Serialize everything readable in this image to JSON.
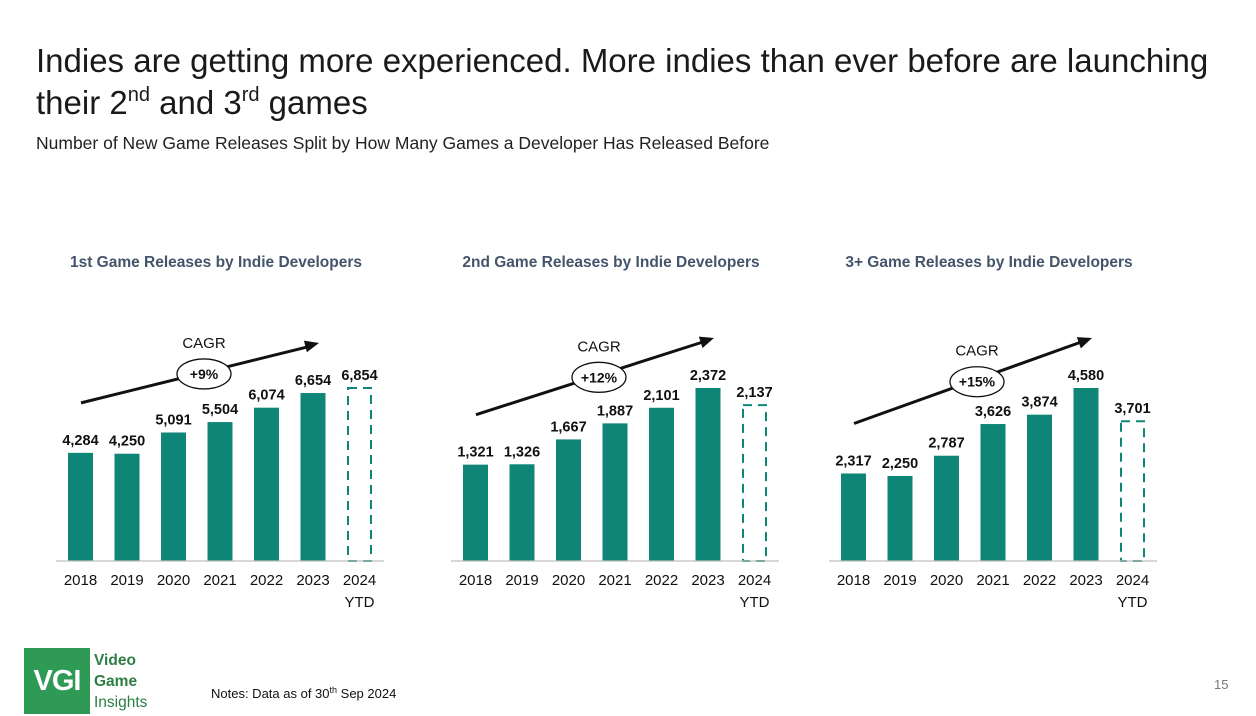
{
  "slide": {
    "title_part1": "Indies are getting more experienced. More indies than ever before are launching their 2",
    "title_sup1": "nd",
    "title_part2": " and 3",
    "title_sup2": "rd",
    "title_part3": " games",
    "subtitle": "Number of New Game Releases Split by How Many Games a Developer Has Released Before",
    "notes_prefix": "Notes: Data as of 30",
    "notes_sup": "th",
    "notes_suffix": " Sep 2024",
    "page_number": "15",
    "logo": {
      "mark": "VGI",
      "line1": "Video",
      "line2": "Game",
      "line3": "Insights"
    }
  },
  "colors": {
    "bar": "#0e8577",
    "title": "#44546a",
    "ytd_outline": "#0e8577",
    "logo": "#2e9a55"
  },
  "chart_data": [
    {
      "type": "bar",
      "title": "1st Game Releases by Indie Developers",
      "categories": [
        "2018",
        "2019",
        "2020",
        "2021",
        "2022",
        "2023",
        "2024"
      ],
      "category_sublabels": [
        "",
        "",
        "",
        "",
        "",
        "",
        "YTD"
      ],
      "values": [
        4284,
        4250,
        5091,
        5504,
        6074,
        6654,
        6854
      ],
      "value_labels": [
        "4,284",
        "4,250",
        "5,091",
        "5,504",
        "6,074",
        "6,654",
        "6,854"
      ],
      "ytd_index": 6,
      "ylim": [
        0,
        6854
      ],
      "cagr_label": "CAGR",
      "cagr_value": "+9%",
      "grid": false
    },
    {
      "type": "bar",
      "title": "2nd Game Releases by Indie Developers",
      "categories": [
        "2018",
        "2019",
        "2020",
        "2021",
        "2022",
        "2023",
        "2024"
      ],
      "category_sublabels": [
        "",
        "",
        "",
        "",
        "",
        "",
        "YTD"
      ],
      "values": [
        1321,
        1326,
        1667,
        1887,
        2101,
        2372,
        2137
      ],
      "value_labels": [
        "1,321",
        "1,326",
        "1,667",
        "1,887",
        "2,101",
        "2,372",
        "2,137"
      ],
      "ytd_index": 6,
      "ylim": [
        0,
        2372
      ],
      "cagr_label": "CAGR",
      "cagr_value": "+12%",
      "grid": false
    },
    {
      "type": "bar",
      "title": "3+ Game Releases by Indie Developers",
      "categories": [
        "2018",
        "2019",
        "2020",
        "2021",
        "2022",
        "2023",
        "2024"
      ],
      "category_sublabels": [
        "",
        "",
        "",
        "",
        "",
        "",
        "YTD"
      ],
      "values": [
        2317,
        2250,
        2787,
        3626,
        3874,
        4580,
        3701
      ],
      "value_labels": [
        "2,317",
        "2,250",
        "2,787",
        "3,626",
        "3,874",
        "4,580",
        "3,701"
      ],
      "ytd_index": 6,
      "ylim": [
        0,
        4580
      ],
      "cagr_label": "CAGR",
      "cagr_value": "+15%",
      "grid": false
    }
  ]
}
